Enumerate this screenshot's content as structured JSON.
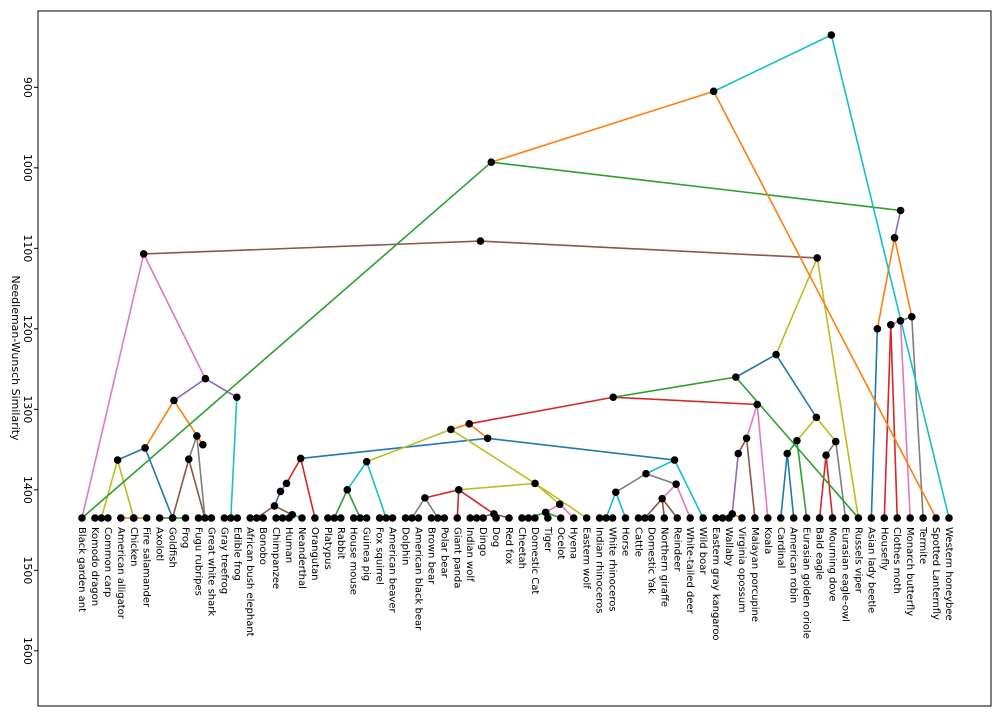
{
  "chart_data": {
    "type": "dendrogram",
    "title": "",
    "ylabel": "Needleman-Wunsch Similarity",
    "xlabel": "",
    "y_ticks": [
      900,
      1000,
      1100,
      1200,
      1300,
      1400,
      1500,
      1600
    ],
    "ylim": [
      1635,
      1810
    ],
    "grid": false,
    "leaves": [
      {
        "name": "Black garden ant",
        "height": 1435,
        "join_id": "dNS"
      },
      {
        "name": "Komodo dragon",
        "height": 1435,
        "join_id": "dAnt"
      },
      {
        "name": "Common carp",
        "height": 1435,
        "join_id": "dAnt"
      },
      {
        "name": "American alligator",
        "height": 1435,
        "join_id": "dSal"
      },
      {
        "name": "Chicken",
        "height": 1435,
        "join_id": "dSal"
      },
      {
        "name": "Fire salamander",
        "height": 1435,
        "join_id": "dSal"
      },
      {
        "name": "Axolotl",
        "height": 1435,
        "join_id": "dFish"
      },
      {
        "name": "Goldfish",
        "height": 1435,
        "join_id": "dFish"
      },
      {
        "name": "Frog",
        "height": 1435,
        "join_id": "dFish"
      },
      {
        "name": "Fugu rubripes",
        "height": 1435,
        "join_id": "dAmph"
      },
      {
        "name": "Great white shark",
        "height": 1435,
        "join_id": "dAmph"
      },
      {
        "name": "Gray treefrog",
        "height": 1435,
        "join_id": "dTree"
      },
      {
        "name": "Edible frog",
        "height": 1435,
        "join_id": "dTree"
      },
      {
        "name": "African bush elephant",
        "height": 1435,
        "join_id": "m1"
      },
      {
        "name": "Bonobo",
        "height": 1435,
        "join_id": "m1"
      },
      {
        "name": "Chimpanzee",
        "height": 1435,
        "join_id": "m2"
      },
      {
        "name": "Human",
        "height": 1435,
        "join_id": "m2"
      },
      {
        "name": "Neanderthal",
        "height": 1435,
        "join_id": "m3"
      },
      {
        "name": "Orangutan",
        "height": 1435,
        "join_id": "m4"
      },
      {
        "name": "Platypus",
        "height": 1435,
        "join_id": "r1"
      },
      {
        "name": "Rabbit",
        "height": 1435,
        "join_id": "r1"
      },
      {
        "name": "House mouse",
        "height": 1435,
        "join_id": "r2"
      },
      {
        "name": "Guinea pig",
        "height": 1435,
        "join_id": "r2"
      },
      {
        "name": "Fox squirrel",
        "height": 1435,
        "join_id": "r3"
      },
      {
        "name": "American beaver",
        "height": 1435,
        "join_id": "r3"
      },
      {
        "name": "Dolphin",
        "height": 1435,
        "join_id": "c1"
      },
      {
        "name": "American black bear",
        "height": 1435,
        "join_id": "c1"
      },
      {
        "name": "Brown bear",
        "height": 1435,
        "join_id": "c2"
      },
      {
        "name": "Polar bear",
        "height": 1435,
        "join_id": "c2"
      },
      {
        "name": "Giant panda",
        "height": 1435,
        "join_id": "c3"
      },
      {
        "name": "Indian wolf",
        "height": 1435,
        "join_id": "c4"
      },
      {
        "name": "Dingo",
        "height": 1435,
        "join_id": "c4"
      },
      {
        "name": "Dog",
        "height": 1435,
        "join_id": "c5"
      },
      {
        "name": "Red fox",
        "height": 1435,
        "join_id": "c5"
      },
      {
        "name": "Cheetah",
        "height": 1435,
        "join_id": "c6"
      },
      {
        "name": "Domestic Cat",
        "height": 1435,
        "join_id": "c6"
      },
      {
        "name": "Tiger",
        "height": 1435,
        "join_id": "c7"
      },
      {
        "name": "Ocelot",
        "height": 1435,
        "join_id": "c7"
      },
      {
        "name": "Hyena",
        "height": 1435,
        "join_id": "c8"
      },
      {
        "name": "Eastern wolf",
        "height": 1435,
        "join_id": "c9"
      },
      {
        "name": "Indian rhinoceros",
        "height": 1435,
        "join_id": "u1"
      },
      {
        "name": "White rhinoceros",
        "height": 1435,
        "join_id": "u1"
      },
      {
        "name": "Horse",
        "height": 1435,
        "join_id": "u2"
      },
      {
        "name": "Cattle",
        "height": 1435,
        "join_id": "u3"
      },
      {
        "name": "Domestic Yak",
        "height": 1435,
        "join_id": "u3"
      },
      {
        "name": "Northern giraffe",
        "height": 1435,
        "join_id": "u4"
      },
      {
        "name": "Reindeer",
        "height": 1435,
        "join_id": "u4"
      },
      {
        "name": "White-tailed deer",
        "height": 1435,
        "join_id": "u5"
      },
      {
        "name": "Wild boar",
        "height": 1435,
        "join_id": "u6"
      },
      {
        "name": "Eastern gray kangaroo",
        "height": 1435,
        "join_id": "k1"
      },
      {
        "name": "Wallaby",
        "height": 1435,
        "join_id": "k1"
      },
      {
        "name": "Virginia opossum",
        "height": 1435,
        "join_id": "k2"
      },
      {
        "name": "Malayan porcupine",
        "height": 1435,
        "join_id": "k3"
      },
      {
        "name": "Koala",
        "height": 1435,
        "join_id": "k4"
      },
      {
        "name": "Cardinal",
        "height": 1435,
        "join_id": "b1"
      },
      {
        "name": "American robin",
        "height": 1435,
        "join_id": "b1"
      },
      {
        "name": "Eurasian golden oriole",
        "height": 1435,
        "join_id": "b2"
      },
      {
        "name": "Bald eagle",
        "height": 1435,
        "join_id": "b3"
      },
      {
        "name": "Mourning dove",
        "height": 1435,
        "join_id": "b3"
      },
      {
        "name": "Eurasian eagle-owl",
        "height": 1435,
        "join_id": "b4"
      },
      {
        "name": "Russels viper",
        "height": 1435,
        "join_id": "b5"
      },
      {
        "name": "Asian lady beetle",
        "height": 1435,
        "join_id": "i1"
      },
      {
        "name": "Housefly",
        "height": 1435,
        "join_id": "i2"
      },
      {
        "name": "Clothes moth",
        "height": 1435,
        "join_id": "i2"
      },
      {
        "name": "Monarch butterfly",
        "height": 1435,
        "join_id": "i3"
      },
      {
        "name": "Termite",
        "height": 1435,
        "join_id": "i4"
      },
      {
        "name": "Spotted Lanternfly",
        "height": 1435,
        "join_id": "i5"
      },
      {
        "name": "Western honeybee",
        "height": 1435,
        "join_id": "i6"
      }
    ],
    "joins": [
      {
        "id": "dAnt",
        "height": 1435,
        "color": "#d62728",
        "children": [
          "Komodo dragon",
          "Common carp"
        ]
      },
      {
        "id": "dSal",
        "height": 1435,
        "color": "#ff7f0e",
        "children": [
          "American alligator",
          "Chicken",
          "Fire salamander"
        ]
      },
      {
        "id": "dFish",
        "height": 1435,
        "color": "#2ca02c",
        "children": [
          "Axolotl",
          "Goldfish",
          "Frog"
        ]
      },
      {
        "id": "dAmph",
        "height": 1435,
        "color": "#1f77b4",
        "children": [
          "Fugu rubripes",
          "Great white shark"
        ]
      },
      {
        "id": "dTree",
        "height": 1435,
        "color": "#9467bd",
        "children": [
          "Gray treefrog",
          "Edible frog"
        ]
      },
      {
        "id": "dCarp",
        "height": 1363,
        "color": "#bcbd22",
        "children": [
          "dSal",
          "dAnt"
        ]
      },
      {
        "id": "dGold",
        "height": 1348,
        "color": "#1f77b4",
        "children": [
          "dCarp",
          "dFish"
        ]
      },
      {
        "id": "dAx",
        "height": 1362,
        "color": "#8c564b",
        "children": [
          "dFish",
          "dAmph"
        ]
      },
      {
        "id": "dShark",
        "height": 1333,
        "color": "#7f7f7f",
        "children": [
          "dAx",
          "dAmph"
        ]
      },
      {
        "id": "dSh2",
        "height": 1344,
        "color": "#7f7f7f",
        "children": [
          "dShark"
        ]
      },
      {
        "id": "dRept",
        "height": 1289,
        "color": "#ff7f0e",
        "children": [
          "dSh2",
          "dGold"
        ]
      },
      {
        "id": "dFrog",
        "height": 1285,
        "color": "#17becf",
        "children": [
          "dTree"
        ]
      },
      {
        "id": "dVert",
        "height": 1262,
        "color": "#9467bd",
        "children": [
          "dRept",
          "dFrog"
        ]
      },
      {
        "id": "dNS",
        "height": 1107,
        "color": "#e377c2",
        "children": [
          "dVert",
          "Black garden ant"
        ]
      },
      {
        "id": "m1",
        "height": 1435,
        "color": "#ff7f0e",
        "children": [
          "African bush elephant",
          "Bonobo"
        ]
      },
      {
        "id": "m2",
        "height": 1435,
        "color": "#2ca02c",
        "children": [
          "Chimpanzee",
          "Human"
        ]
      },
      {
        "id": "m3",
        "height": 1431,
        "color": "#17becf",
        "children": [
          "m2",
          "Neanderthal"
        ]
      },
      {
        "id": "m4",
        "height": 1420,
        "color": "#8c564b",
        "children": [
          "m1",
          "m3"
        ]
      },
      {
        "id": "m5",
        "height": 1402,
        "color": "#1f77b4",
        "children": [
          "m4"
        ]
      },
      {
        "id": "m6",
        "height": 1392,
        "color": "#9467bd",
        "children": [
          "m5"
        ]
      },
      {
        "id": "mOr",
        "height": 1361,
        "color": "#d62728",
        "children": [
          "m6",
          "Orangutan"
        ]
      },
      {
        "id": "r1",
        "height": 1435,
        "color": "#bcbd22",
        "children": [
          "Platypus",
          "Rabbit"
        ]
      },
      {
        "id": "r2",
        "height": 1435,
        "color": "#e377c2",
        "children": [
          "House mouse",
          "Guinea pig"
        ]
      },
      {
        "id": "r3",
        "height": 1435,
        "color": "#1f77b4",
        "children": [
          "Fox squirrel",
          "American beaver"
        ]
      },
      {
        "id": "r4",
        "height": 1400,
        "color": "#2ca02c",
        "children": [
          "r1",
          "r2"
        ]
      },
      {
        "id": "rRod",
        "height": 1365,
        "color": "#17becf",
        "children": [
          "r3",
          "r4"
        ]
      },
      {
        "id": "c1",
        "height": 1435,
        "color": "#9467bd",
        "children": [
          "Dolphin",
          "American black bear"
        ]
      },
      {
        "id": "c2",
        "height": 1435,
        "color": "#2ca02c",
        "children": [
          "Brown bear",
          "Polar bear"
        ]
      },
      {
        "id": "c3",
        "height": 1410,
        "color": "#7f7f7f",
        "children": [
          "c1",
          "c2"
        ]
      },
      {
        "id": "c4",
        "height": 1435,
        "color": "#17becf",
        "children": [
          "Indian wolf",
          "Dingo"
        ]
      },
      {
        "id": "c5",
        "height": 1430,
        "color": "#8c564b",
        "children": [
          "Dog",
          "Red fox",
          "c4"
        ]
      },
      {
        "id": "c6",
        "height": 1435,
        "color": "#ff7f0e",
        "children": [
          "Cheetah",
          "Domestic Cat"
        ]
      },
      {
        "id": "c7",
        "height": 1428,
        "color": "#2ca02c",
        "children": [
          "Tiger",
          "Ocelot",
          "c6"
        ]
      },
      {
        "id": "c8",
        "height": 1418,
        "color": "#e377c2",
        "children": [
          "c7",
          "Hyena"
        ]
      },
      {
        "id": "c9",
        "height": 1400,
        "color": "#d62728",
        "children": [
          "c3",
          "Giant panda",
          "c5"
        ]
      },
      {
        "id": "cCarn",
        "height": 1392,
        "color": "#bcbd22",
        "children": [
          "c9",
          "c8",
          "Eastern wolf"
        ]
      },
      {
        "id": "u1",
        "height": 1435,
        "color": "#e377c2",
        "children": [
          "Indian rhinoceros",
          "White rhinoceros"
        ]
      },
      {
        "id": "u2",
        "height": 1403,
        "color": "#17becf",
        "children": [
          "u1",
          "Horse"
        ]
      },
      {
        "id": "u3",
        "height": 1435,
        "color": "#d62728",
        "children": [
          "Cattle",
          "Domestic Yak"
        ]
      },
      {
        "id": "u4",
        "height": 1411,
        "color": "#8c564b",
        "children": [
          "u3",
          "Northern giraffe",
          "Reindeer"
        ]
      },
      {
        "id": "u5",
        "height": 1393,
        "color": "#e377c2",
        "children": [
          "u4",
          "White-tailed deer"
        ]
      },
      {
        "id": "u6",
        "height": 1380,
        "color": "#7f7f7f",
        "children": [
          "u5",
          "u2"
        ]
      },
      {
        "id": "u7",
        "height": 1363,
        "color": "#17becf",
        "children": [
          "u6",
          "Wild boar"
        ]
      },
      {
        "id": "k1",
        "height": 1435,
        "color": "#2ca02c",
        "children": [
          "Eastern gray kangaroo",
          "Wallaby"
        ]
      },
      {
        "id": "k2",
        "height": 1430,
        "color": "#ff7f0e",
        "children": [
          "k1",
          "Virginia opossum"
        ]
      },
      {
        "id": "k3",
        "height": 1355,
        "color": "#9467bd",
        "children": [
          "k2"
        ]
      },
      {
        "id": "k4",
        "height": 1336,
        "color": "#8c564b",
        "children": [
          "k3",
          "Malayan porcupine"
        ]
      },
      {
        "id": "kMars",
        "height": 1294,
        "color": "#e377c2",
        "children": [
          "k4",
          "Koala"
        ]
      },
      {
        "id": "b1",
        "height": 1355,
        "color": "#1f77b4",
        "children": [
          "Cardinal",
          "American robin"
        ]
      },
      {
        "id": "b2",
        "height": 1339,
        "color": "#2ca02c",
        "children": [
          "b1",
          "Eurasian golden oriole"
        ]
      },
      {
        "id": "b3",
        "height": 1357,
        "color": "#d62728",
        "children": [
          "Bald eagle",
          "Mourning dove"
        ]
      },
      {
        "id": "b4",
        "height": 1340,
        "color": "#7f7f7f",
        "children": [
          "b3",
          "Eurasian eagle-owl"
        ]
      },
      {
        "id": "b5",
        "height": 1310,
        "color": "#bcbd22",
        "children": [
          "b2",
          "b4"
        ]
      },
      {
        "id": "i1",
        "height": 1200,
        "color": "#1f77b4",
        "children": [
          "Asian lady beetle"
        ]
      },
      {
        "id": "i2",
        "height": 1195,
        "color": "#d62728",
        "children": [
          "Housefly",
          "Clothes moth"
        ]
      },
      {
        "id": "i3",
        "height": 1190,
        "color": "#e377c2",
        "children": [
          "i2",
          "Monarch butterfly"
        ]
      },
      {
        "id": "i4",
        "height": 1185,
        "color": "#7f7f7f",
        "children": [
          "i3",
          "Termite"
        ]
      },
      {
        "id": "i5",
        "height": 1087,
        "color": "#ff7f0e",
        "children": [
          "i4",
          "i1"
        ]
      },
      {
        "id": "i6",
        "height": 1053,
        "color": "#9467bd",
        "children": [
          "i5"
        ]
      },
      {
        "id": "mam1",
        "height": 1336,
        "color": "#1f77b4",
        "children": [
          "mOr",
          "u7"
        ]
      },
      {
        "id": "mam2",
        "height": 1325,
        "color": "#bcbd22",
        "children": [
          "rRod",
          "cCarn"
        ]
      },
      {
        "id": "mam3",
        "height": 1318,
        "color": "#ff7f0e",
        "children": [
          "mam1",
          "mam2"
        ]
      },
      {
        "id": "mam4",
        "height": 1285,
        "color": "#d62728",
        "children": [
          "mam3",
          "kMars"
        ]
      },
      {
        "id": "mam5",
        "height": 1260,
        "color": "#2ca02c",
        "children": [
          "mam4",
          "Russels viper"
        ]
      },
      {
        "id": "vert",
        "height": 1232,
        "color": "#1f77b4",
        "children": [
          "mam5",
          "b5"
        ]
      },
      {
        "id": "ins",
        "height": 1112,
        "color": "#bcbd22",
        "children": [
          "vert",
          "Russels viper"
        ]
      },
      {
        "id": "big",
        "height": 1091,
        "color": "#8c564b",
        "children": [
          "dNS",
          "ins"
        ]
      },
      {
        "id": "top1",
        "height": 993,
        "color": "#2ca02c",
        "children": [
          "Black garden ant",
          "i6"
        ]
      },
      {
        "id": "top2",
        "height": 905,
        "color": "#ff7f0e",
        "children": [
          "top1",
          "Spotted Lanternfly"
        ]
      },
      {
        "id": "root",
        "height": 835,
        "color": "#17becf",
        "children": [
          "top2",
          "Western honeybee"
        ]
      }
    ]
  }
}
